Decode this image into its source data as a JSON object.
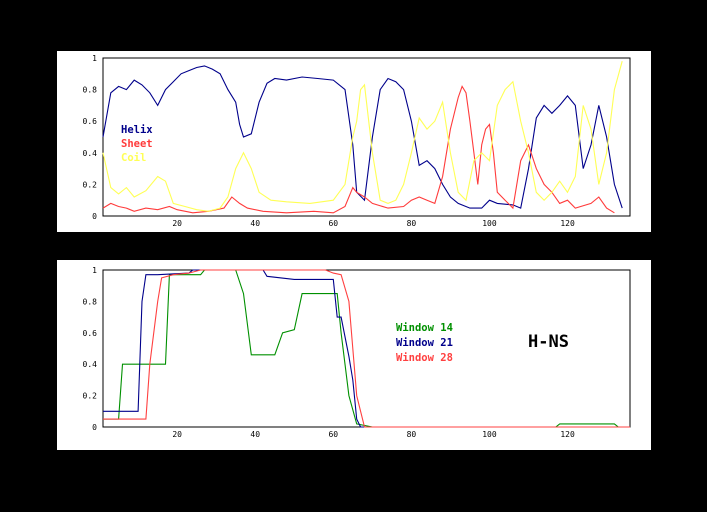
{
  "colors": {
    "background": "#000000",
    "panel": "#ffffff",
    "axis": "#000000",
    "helix": "#00008b",
    "sheet": "#ff3b3b",
    "coil": "#ffff55",
    "window14": "#009000",
    "window21": "#00008b",
    "window28": "#ff4040"
  },
  "chart_data": [
    {
      "type": "line",
      "xlim": [
        1,
        136
      ],
      "ylim": [
        0,
        1
      ],
      "x_ticks": [
        20,
        40,
        60,
        80,
        100,
        120
      ],
      "y_ticks": [
        0,
        0.2,
        0.4,
        0.6,
        0.8,
        1
      ],
      "y_tick_labels": [
        "0",
        "0.2",
        "0.4",
        "0.6",
        "0.8",
        "1"
      ],
      "legend": "top-left",
      "grid": false,
      "series": [
        {
          "name": "Helix",
          "color": "#00008b",
          "points": [
            [
              1,
              0.5
            ],
            [
              3,
              0.78
            ],
            [
              5,
              0.82
            ],
            [
              7,
              0.8
            ],
            [
              9,
              0.86
            ],
            [
              11,
              0.83
            ],
            [
              13,
              0.78
            ],
            [
              15,
              0.7
            ],
            [
              17,
              0.8
            ],
            [
              19,
              0.85
            ],
            [
              21,
              0.9
            ],
            [
              23,
              0.92
            ],
            [
              25,
              0.94
            ],
            [
              27,
              0.95
            ],
            [
              29,
              0.93
            ],
            [
              31,
              0.9
            ],
            [
              33,
              0.8
            ],
            [
              35,
              0.72
            ],
            [
              36,
              0.58
            ],
            [
              37,
              0.5
            ],
            [
              39,
              0.52
            ],
            [
              41,
              0.72
            ],
            [
              43,
              0.84
            ],
            [
              45,
              0.87
            ],
            [
              48,
              0.86
            ],
            [
              52,
              0.88
            ],
            [
              56,
              0.87
            ],
            [
              60,
              0.86
            ],
            [
              63,
              0.8
            ],
            [
              65,
              0.45
            ],
            [
              66,
              0.15
            ],
            [
              68,
              0.1
            ],
            [
              70,
              0.5
            ],
            [
              72,
              0.8
            ],
            [
              74,
              0.87
            ],
            [
              76,
              0.85
            ],
            [
              78,
              0.8
            ],
            [
              80,
              0.6
            ],
            [
              82,
              0.32
            ],
            [
              84,
              0.35
            ],
            [
              86,
              0.3
            ],
            [
              88,
              0.2
            ],
            [
              90,
              0.12
            ],
            [
              92,
              0.08
            ],
            [
              95,
              0.05
            ],
            [
              98,
              0.05
            ],
            [
              100,
              0.1
            ],
            [
              102,
              0.08
            ],
            [
              106,
              0.07
            ],
            [
              108,
              0.05
            ],
            [
              110,
              0.3
            ],
            [
              112,
              0.62
            ],
            [
              114,
              0.7
            ],
            [
              116,
              0.65
            ],
            [
              118,
              0.7
            ],
            [
              120,
              0.76
            ],
            [
              122,
              0.7
            ],
            [
              124,
              0.3
            ],
            [
              126,
              0.45
            ],
            [
              128,
              0.7
            ],
            [
              130,
              0.5
            ],
            [
              132,
              0.2
            ],
            [
              134,
              0.05
            ]
          ]
        },
        {
          "name": "Sheet",
          "color": "#ff3b3b",
          "points": [
            [
              1,
              0.05
            ],
            [
              3,
              0.08
            ],
            [
              5,
              0.06
            ],
            [
              7,
              0.05
            ],
            [
              9,
              0.03
            ],
            [
              12,
              0.05
            ],
            [
              15,
              0.04
            ],
            [
              18,
              0.06
            ],
            [
              20,
              0.04
            ],
            [
              24,
              0.02
            ],
            [
              28,
              0.03
            ],
            [
              32,
              0.05
            ],
            [
              34,
              0.12
            ],
            [
              36,
              0.08
            ],
            [
              38,
              0.05
            ],
            [
              42,
              0.03
            ],
            [
              48,
              0.02
            ],
            [
              55,
              0.03
            ],
            [
              60,
              0.02
            ],
            [
              63,
              0.06
            ],
            [
              65,
              0.18
            ],
            [
              66,
              0.15
            ],
            [
              68,
              0.12
            ],
            [
              70,
              0.08
            ],
            [
              74,
              0.05
            ],
            [
              78,
              0.06
            ],
            [
              80,
              0.1
            ],
            [
              82,
              0.12
            ],
            [
              84,
              0.1
            ],
            [
              86,
              0.08
            ],
            [
              88,
              0.25
            ],
            [
              90,
              0.55
            ],
            [
              92,
              0.75
            ],
            [
              93,
              0.82
            ],
            [
              94,
              0.78
            ],
            [
              95,
              0.6
            ],
            [
              96,
              0.4
            ],
            [
              97,
              0.2
            ],
            [
              98,
              0.45
            ],
            [
              99,
              0.55
            ],
            [
              100,
              0.58
            ],
            [
              101,
              0.4
            ],
            [
              102,
              0.15
            ],
            [
              104,
              0.1
            ],
            [
              106,
              0.05
            ],
            [
              108,
              0.35
            ],
            [
              110,
              0.45
            ],
            [
              112,
              0.3
            ],
            [
              114,
              0.2
            ],
            [
              116,
              0.15
            ],
            [
              118,
              0.08
            ],
            [
              120,
              0.1
            ],
            [
              122,
              0.05
            ],
            [
              126,
              0.08
            ],
            [
              128,
              0.12
            ],
            [
              130,
              0.05
            ],
            [
              132,
              0.02
            ]
          ]
        },
        {
          "name": "Coil",
          "color": "#ffff55",
          "points": [
            [
              1,
              0.4
            ],
            [
              3,
              0.18
            ],
            [
              5,
              0.14
            ],
            [
              7,
              0.18
            ],
            [
              9,
              0.12
            ],
            [
              12,
              0.16
            ],
            [
              15,
              0.25
            ],
            [
              17,
              0.22
            ],
            [
              19,
              0.08
            ],
            [
              22,
              0.06
            ],
            [
              25,
              0.04
            ],
            [
              28,
              0.03
            ],
            [
              31,
              0.05
            ],
            [
              33,
              0.12
            ],
            [
              35,
              0.3
            ],
            [
              37,
              0.4
            ],
            [
              39,
              0.3
            ],
            [
              41,
              0.15
            ],
            [
              44,
              0.1
            ],
            [
              48,
              0.09
            ],
            [
              54,
              0.08
            ],
            [
              60,
              0.1
            ],
            [
              63,
              0.2
            ],
            [
              65,
              0.5
            ],
            [
              66,
              0.6
            ],
            [
              67,
              0.8
            ],
            [
              68,
              0.83
            ],
            [
              70,
              0.4
            ],
            [
              72,
              0.1
            ],
            [
              74,
              0.08
            ],
            [
              76,
              0.1
            ],
            [
              78,
              0.2
            ],
            [
              80,
              0.4
            ],
            [
              82,
              0.62
            ],
            [
              84,
              0.55
            ],
            [
              86,
              0.6
            ],
            [
              88,
              0.72
            ],
            [
              90,
              0.4
            ],
            [
              92,
              0.15
            ],
            [
              94,
              0.1
            ],
            [
              96,
              0.35
            ],
            [
              98,
              0.4
            ],
            [
              100,
              0.35
            ],
            [
              102,
              0.7
            ],
            [
              104,
              0.8
            ],
            [
              106,
              0.85
            ],
            [
              108,
              0.6
            ],
            [
              110,
              0.4
            ],
            [
              112,
              0.15
            ],
            [
              114,
              0.1
            ],
            [
              116,
              0.15
            ],
            [
              118,
              0.22
            ],
            [
              120,
              0.15
            ],
            [
              122,
              0.25
            ],
            [
              124,
              0.7
            ],
            [
              126,
              0.55
            ],
            [
              128,
              0.2
            ],
            [
              130,
              0.4
            ],
            [
              132,
              0.8
            ],
            [
              134,
              0.98
            ]
          ]
        }
      ]
    },
    {
      "type": "line",
      "xlim": [
        1,
        136
      ],
      "ylim": [
        0,
        1
      ],
      "x_ticks": [
        20,
        40,
        60,
        80,
        100,
        120
      ],
      "y_ticks": [
        0,
        0.2,
        0.4,
        0.6,
        0.8,
        1
      ],
      "y_tick_labels": [
        "0",
        "0.2",
        "0.4",
        "0.6",
        "0.8",
        "1"
      ],
      "legend": "center-right",
      "grid": false,
      "annotation": "H-NS",
      "series": [
        {
          "name": "Window 14",
          "color": "#009000",
          "points": [
            [
              1,
              0.05
            ],
            [
              5,
              0.05
            ],
            [
              6,
              0.4
            ],
            [
              12,
              0.4
            ],
            [
              13,
              0.4
            ],
            [
              17,
              0.4
            ],
            [
              18,
              0.97
            ],
            [
              26,
              0.97
            ],
            [
              27,
              1.0
            ],
            [
              35,
              1.0
            ],
            [
              37,
              0.85
            ],
            [
              39,
              0.46
            ],
            [
              45,
              0.46
            ],
            [
              47,
              0.6
            ],
            [
              50,
              0.62
            ],
            [
              52,
              0.85
            ],
            [
              60,
              0.85
            ],
            [
              61,
              0.85
            ],
            [
              62,
              0.6
            ],
            [
              63,
              0.4
            ],
            [
              64,
              0.2
            ],
            [
              66,
              0.02
            ],
            [
              70,
              0
            ],
            [
              117,
              0
            ],
            [
              118,
              0.02
            ],
            [
              132,
              0.02
            ],
            [
              133,
              0
            ]
          ]
        },
        {
          "name": "Window 21",
          "color": "#00008b",
          "points": [
            [
              1,
              0.1
            ],
            [
              10,
              0.1
            ],
            [
              11,
              0.8
            ],
            [
              12,
              0.97
            ],
            [
              15,
              0.97
            ],
            [
              23,
              0.98
            ],
            [
              24,
              1.0
            ],
            [
              42,
              1.0
            ],
            [
              43,
              0.96
            ],
            [
              50,
              0.94
            ],
            [
              58,
              0.94
            ],
            [
              60,
              0.94
            ],
            [
              61,
              0.7
            ],
            [
              62,
              0.7
            ],
            [
              64,
              0.45
            ],
            [
              65,
              0.3
            ],
            [
              66,
              0.05
            ],
            [
              67,
              0
            ],
            [
              136,
              0
            ]
          ]
        },
        {
          "name": "Window 28",
          "color": "#ff4040",
          "points": [
            [
              1,
              0.05
            ],
            [
              12,
              0.05
            ],
            [
              13,
              0.4
            ],
            [
              15,
              0.8
            ],
            [
              16,
              0.95
            ],
            [
              19,
              0.97
            ],
            [
              23,
              0.98
            ],
            [
              26,
              1.0
            ],
            [
              58,
              1.0
            ],
            [
              60,
              0.98
            ],
            [
              62,
              0.97
            ],
            [
              64,
              0.8
            ],
            [
              65,
              0.5
            ],
            [
              66,
              0.2
            ],
            [
              68,
              0
            ],
            [
              136,
              0
            ]
          ]
        }
      ]
    }
  ]
}
